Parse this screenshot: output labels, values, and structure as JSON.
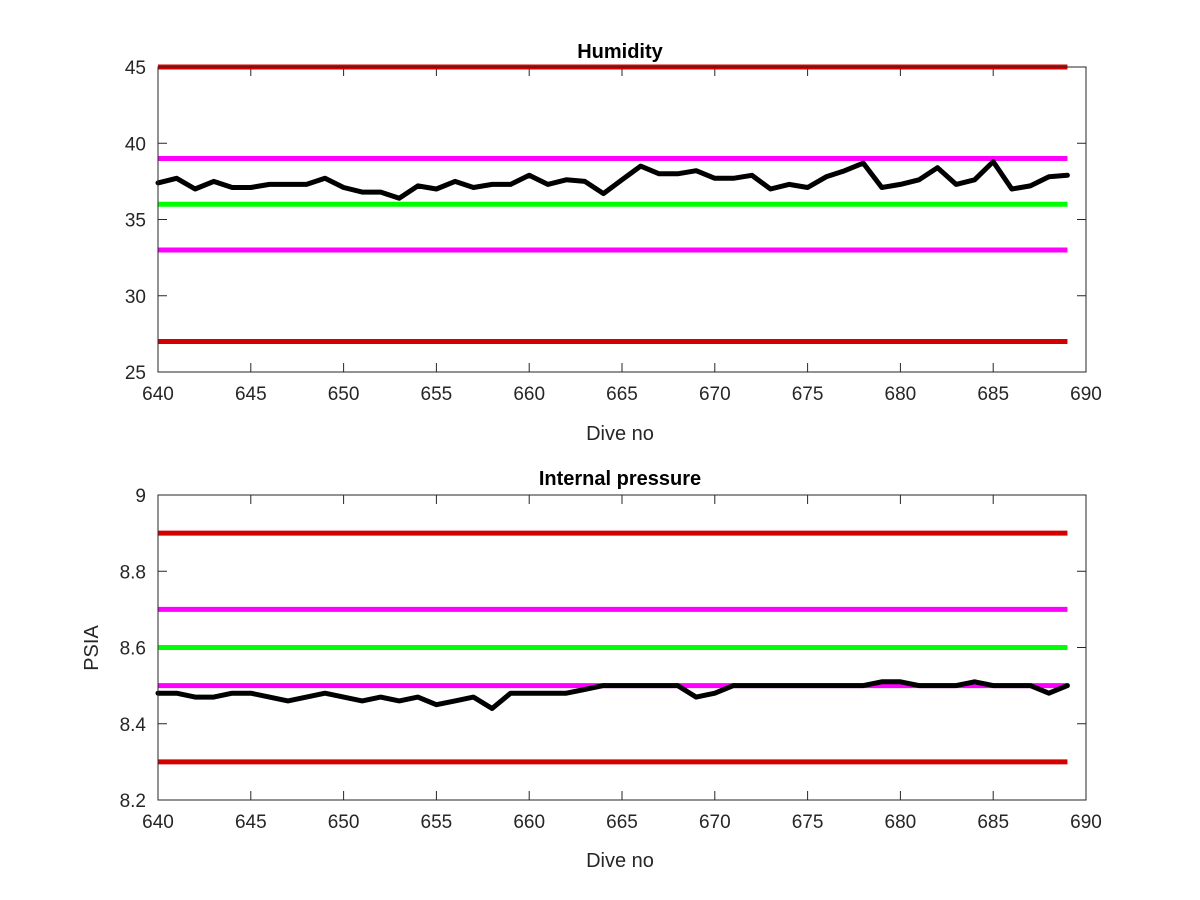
{
  "chart_data": [
    {
      "type": "line",
      "title": "Humidity",
      "xlabel": "Dive no",
      "ylabel": "",
      "xlim": [
        640,
        690
      ],
      "ylim": [
        25,
        45
      ],
      "xticks": [
        640,
        645,
        650,
        655,
        660,
        665,
        670,
        675,
        680,
        685,
        690
      ],
      "yticks": [
        25,
        30,
        35,
        40,
        45
      ],
      "grid": false,
      "series": [
        {
          "color": "#000000",
          "x": [
            640,
            641,
            642,
            643,
            644,
            645,
            646,
            647,
            648,
            649,
            650,
            651,
            652,
            653,
            654,
            655,
            656,
            657,
            658,
            659,
            660,
            661,
            662,
            663,
            664,
            665,
            666,
            667,
            668,
            669,
            670,
            671,
            672,
            673,
            674,
            675,
            676,
            677,
            678,
            679,
            680,
            681,
            682,
            683,
            684,
            685,
            686,
            687,
            688,
            689
          ],
          "values": [
            37.4,
            37.7,
            37.0,
            37.5,
            37.1,
            37.1,
            37.3,
            37.3,
            37.3,
            37.7,
            37.1,
            36.8,
            36.8,
            36.4,
            37.2,
            37.0,
            37.5,
            37.1,
            37.3,
            37.3,
            37.9,
            37.3,
            37.6,
            37.5,
            36.7,
            37.6,
            38.5,
            38.0,
            38.0,
            38.2,
            37.7,
            37.7,
            37.9,
            37.0,
            37.3,
            37.1,
            37.8,
            38.2,
            38.7,
            37.1,
            37.3,
            37.6,
            38.4,
            37.3,
            37.6,
            38.8,
            37.0,
            37.2,
            37.8,
            37.9
          ]
        }
      ],
      "hlines": [
        {
          "y": 45,
          "color": "#d40000"
        },
        {
          "y": 39,
          "color": "#ff00ff"
        },
        {
          "y": 36,
          "color": "#00ff00"
        },
        {
          "y": 33,
          "color": "#ff00ff"
        },
        {
          "y": 27,
          "color": "#d40000"
        }
      ],
      "hline_x_range": [
        640,
        689
      ]
    },
    {
      "type": "line",
      "title": "Internal pressure",
      "xlabel": "Dive no",
      "ylabel": "PSIA",
      "xlim": [
        640,
        690
      ],
      "ylim": [
        8.2,
        9.0
      ],
      "xticks": [
        640,
        645,
        650,
        655,
        660,
        665,
        670,
        675,
        680,
        685,
        690
      ],
      "yticks": [
        8.2,
        8.4,
        8.6,
        8.8,
        9
      ],
      "ytick_labels": [
        "8.2",
        "8.4",
        "8.6",
        "8.8",
        "9"
      ],
      "grid": false,
      "series": [
        {
          "color": "#000000",
          "x": [
            640,
            641,
            642,
            643,
            644,
            645,
            646,
            647,
            648,
            649,
            650,
            651,
            652,
            653,
            654,
            655,
            656,
            657,
            658,
            659,
            660,
            661,
            662,
            663,
            664,
            665,
            666,
            667,
            668,
            669,
            670,
            671,
            672,
            673,
            674,
            675,
            676,
            677,
            678,
            679,
            680,
            681,
            682,
            683,
            684,
            685,
            686,
            687,
            688,
            689
          ],
          "values": [
            8.48,
            8.48,
            8.47,
            8.47,
            8.48,
            8.48,
            8.47,
            8.46,
            8.47,
            8.48,
            8.47,
            8.46,
            8.47,
            8.46,
            8.47,
            8.45,
            8.46,
            8.47,
            8.44,
            8.48,
            8.48,
            8.48,
            8.48,
            8.49,
            8.5,
            8.5,
            8.5,
            8.5,
            8.5,
            8.47,
            8.48,
            8.5,
            8.5,
            8.5,
            8.5,
            8.5,
            8.5,
            8.5,
            8.5,
            8.51,
            8.51,
            8.5,
            8.5,
            8.5,
            8.51,
            8.5,
            8.5,
            8.5,
            8.48,
            8.5
          ]
        }
      ],
      "hlines": [
        {
          "y": 8.9,
          "color": "#d40000"
        },
        {
          "y": 8.7,
          "color": "#ff00ff"
        },
        {
          "y": 8.6,
          "color": "#00ff00"
        },
        {
          "y": 8.5,
          "color": "#ff00ff"
        },
        {
          "y": 8.3,
          "color": "#d40000"
        }
      ],
      "hline_x_range": [
        640,
        689
      ]
    }
  ]
}
